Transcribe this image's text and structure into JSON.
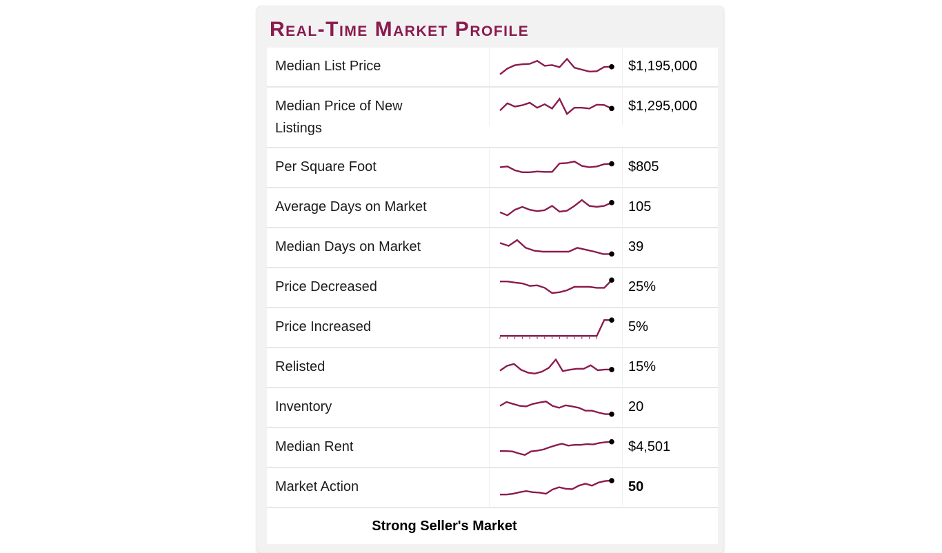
{
  "header": {
    "title": "Real-Time Market Profile"
  },
  "footer": {
    "label": "Strong Seller's Market"
  },
  "colors": {
    "accent": "#8a1b4f",
    "dot": "#000000",
    "card_bg": "#f2f2f2",
    "row_bg": "#ffffff",
    "separator": "#e7e7e7"
  },
  "chart_data": {
    "type": "table",
    "title": "Real-Time Market Profile",
    "columns": [
      "metric",
      "trend_sparkline",
      "current_value"
    ],
    "sparkline_note": "values are relative 0-100 positions read from each mini line chart, left to right; black dot marks latest value",
    "rows": [
      {
        "label": "Median List Price",
        "value": "$1,195,000",
        "bold": false,
        "ticks": false,
        "spark": [
          8,
          38,
          55,
          60,
          62,
          78,
          52,
          56,
          45,
          88,
          42,
          32,
          22,
          24,
          46,
          47
        ]
      },
      {
        "label": "Median Price of New Listings",
        "value": "$1,295,000",
        "bold": false,
        "ticks": false,
        "spark": [
          28,
          65,
          48,
          55,
          68,
          42,
          60,
          38,
          88,
          10,
          42,
          42,
          38,
          58,
          56,
          38
        ]
      },
      {
        "label": "Per Square Foot",
        "value": "$805",
        "bold": false,
        "ticks": false,
        "spark": [
          48,
          52,
          32,
          22,
          22,
          26,
          24,
          24,
          68,
          70,
          78,
          55,
          48,
          52,
          64,
          66
        ]
      },
      {
        "label": "Average Days on Market",
        "value": "105",
        "bold": false,
        "ticks": false,
        "spark": [
          22,
          6,
          35,
          50,
          35,
          28,
          33,
          55,
          25,
          30,
          55,
          85,
          55,
          50,
          55,
          72
        ]
      },
      {
        "label": "Median Days on Market",
        "value": "39",
        "bold": false,
        "ticks": false,
        "spark": [
          70,
          55,
          85,
          45,
          30,
          25,
          25,
          25,
          25,
          45,
          35,
          25,
          13,
          13
        ]
      },
      {
        "label": "Price Decreased",
        "value": "25%",
        "bold": false,
        "ticks": false,
        "spark": [
          78,
          78,
          72,
          68,
          55,
          58,
          45,
          18,
          22,
          32,
          50,
          50,
          50,
          45,
          45,
          85
        ]
      },
      {
        "label": "Price Increased",
        "value": "5%",
        "bold": false,
        "ticks": true,
        "spark": [
          3,
          3,
          3,
          3,
          3,
          3,
          3,
          3,
          3,
          3,
          3,
          3,
          3,
          3,
          85,
          85
        ]
      },
      {
        "label": "Relisted",
        "value": "15%",
        "bold": false,
        "ticks": false,
        "spark": [
          30,
          55,
          65,
          35,
          20,
          15,
          25,
          45,
          88,
          28,
          35,
          40,
          40,
          58,
          32,
          36,
          36
        ]
      },
      {
        "label": "Inventory",
        "value": "20",
        "bold": false,
        "ticks": false,
        "spark": [
          55,
          75,
          65,
          55,
          52,
          65,
          72,
          78,
          55,
          45,
          58,
          52,
          45,
          30,
          30,
          20,
          12,
          12
        ]
      },
      {
        "label": "Median Rent",
        "value": "$4,501",
        "bold": false,
        "ticks": false,
        "spark": [
          28,
          28,
          26,
          16,
          8,
          26,
          30,
          36,
          48,
          58,
          66,
          56,
          60,
          60,
          64,
          62,
          70,
          74,
          76
        ]
      },
      {
        "label": "Market Action",
        "value": "50",
        "bold": true,
        "ticks": false,
        "spark": [
          10,
          10,
          14,
          22,
          28,
          22,
          20,
          14,
          36,
          48,
          40,
          38,
          56,
          66,
          56,
          72,
          80,
          82
        ]
      }
    ],
    "footer": "Strong Seller's Market"
  }
}
